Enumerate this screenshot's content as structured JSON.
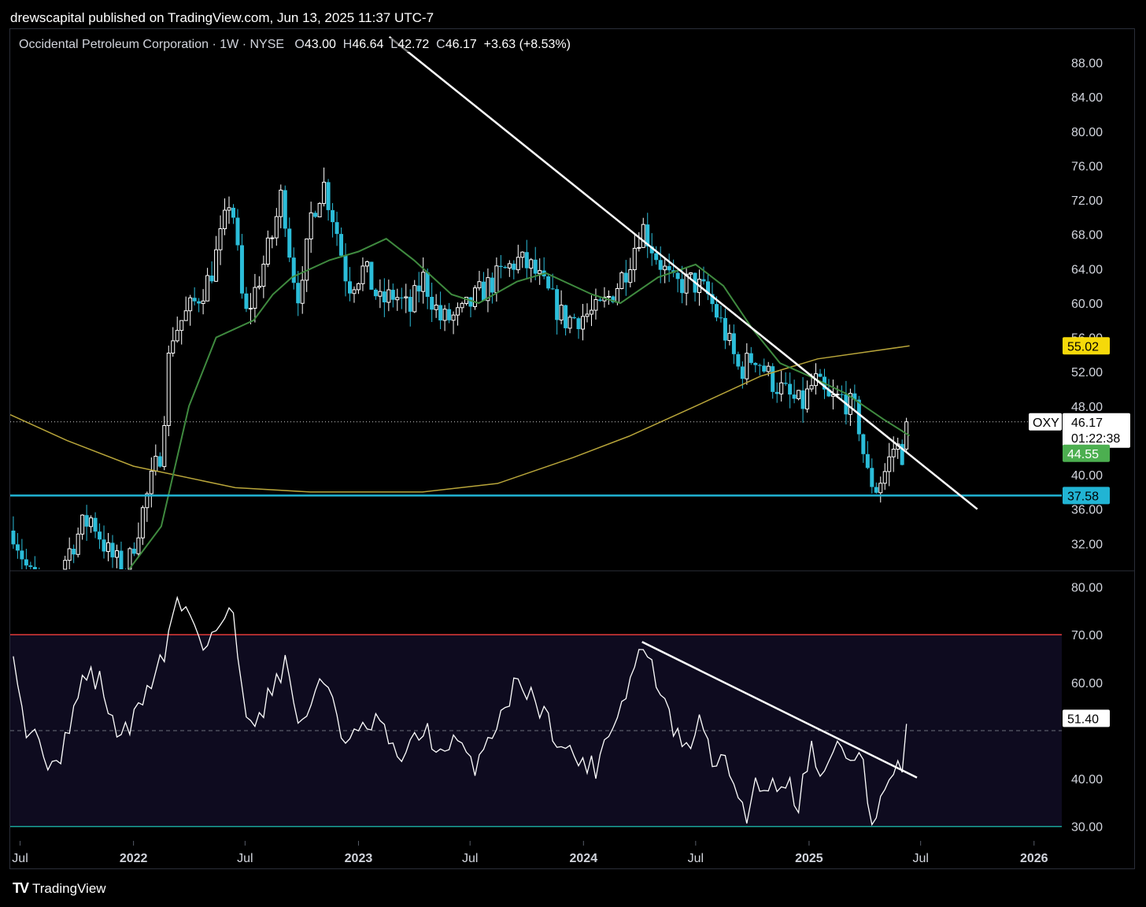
{
  "banner": "drewscapital published on TradingView.com, Jun 13, 2025 11:37 UTC-7",
  "legend": {
    "name": "Occidental Petroleum Corporation",
    "interval": "1W",
    "exchange": "NYSE",
    "open_label": "O",
    "open": "43.00",
    "high_label": "H",
    "high": "46.64",
    "low_label": "L",
    "low": "42.72",
    "close_label": "C",
    "close": "46.17",
    "change": "+3.63 (+8.53%)"
  },
  "footer": {
    "logo_mark": "TV",
    "logo_text": "TradingView"
  },
  "colors": {
    "up_candle": "#ffffff",
    "down_candle": "#2bbdd9",
    "sma_short": "#3f8a3f",
    "sma_long": "#b8a53a",
    "support": "#21b4d4",
    "rsi_line": "#ffffff",
    "rsi_upper_band": "#e23a3a",
    "rsi_lower_band": "#1aa39a"
  },
  "chart_data": [
    {
      "type": "candlestick",
      "symbol": "OXY",
      "price_axis": {
        "range": [
          29,
          92
        ],
        "ticks": [
          "88.00",
          "84.00",
          "80.00",
          "76.00",
          "72.00",
          "68.00",
          "64.00",
          "60.00",
          "56.00",
          "52.00",
          "48.00",
          "40.00",
          "36.00",
          "32.00"
        ]
      },
      "time_axis": {
        "ticks": [
          {
            "label": "Jul",
            "date": "2021-07-01"
          },
          {
            "label": "2022",
            "date": "2022-01-01"
          },
          {
            "label": "Jul",
            "date": "2022-07-01"
          },
          {
            "label": "2023",
            "date": "2023-01-01"
          },
          {
            "label": "Jul",
            "date": "2023-07-01"
          },
          {
            "label": "2024",
            "date": "2024-01-01"
          },
          {
            "label": "Jul",
            "date": "2024-07-01"
          },
          {
            "label": "2025",
            "date": "2025-01-01"
          },
          {
            "label": "Jul",
            "date": "2025-07-01"
          },
          {
            "label": "2026",
            "date": "2026-01-01"
          }
        ],
        "range": [
          "2021-06-15",
          "2026-02-15"
        ]
      },
      "price_badges": [
        {
          "symbol": "OXY",
          "value": "46.17",
          "countdown": "01:22:38",
          "kind": "last"
        },
        {
          "value": "55.02",
          "kind": "sma_long"
        },
        {
          "value": "44.55",
          "kind": "sma_short"
        },
        {
          "value": "37.58",
          "kind": "support"
        }
      ],
      "closes_monthly": [
        {
          "date": "2021-06-20",
          "close": 33.5
        },
        {
          "date": "2021-07-15",
          "close": 28.5
        },
        {
          "date": "2021-08-15",
          "close": 26.0
        },
        {
          "date": "2021-09-10",
          "close": 30.0
        },
        {
          "date": "2021-10-10",
          "close": 34.0
        },
        {
          "date": "2021-10-25",
          "close": 35.0
        },
        {
          "date": "2021-11-20",
          "close": 31.0
        },
        {
          "date": "2021-12-20",
          "close": 28.5
        },
        {
          "date": "2022-01-05",
          "close": 33.0
        },
        {
          "date": "2022-01-25",
          "close": 38.0
        },
        {
          "date": "2022-02-15",
          "close": 43.0
        },
        {
          "date": "2022-03-02",
          "close": 56.0
        },
        {
          "date": "2022-03-20",
          "close": 58.0
        },
        {
          "date": "2022-04-10",
          "close": 60.0
        },
        {
          "date": "2022-05-05",
          "close": 63.0
        },
        {
          "date": "2022-05-28",
          "close": 69.0
        },
        {
          "date": "2022-06-08",
          "close": 73.0
        },
        {
          "date": "2022-06-30",
          "close": 58.0
        },
        {
          "date": "2022-07-20",
          "close": 62.0
        },
        {
          "date": "2022-08-15",
          "close": 68.0
        },
        {
          "date": "2022-08-30",
          "close": 73.0
        },
        {
          "date": "2022-09-15",
          "close": 64.0
        },
        {
          "date": "2022-09-30",
          "close": 60.0
        },
        {
          "date": "2022-10-15",
          "close": 70.0
        },
        {
          "date": "2022-11-05",
          "close": 74.0
        },
        {
          "date": "2022-11-25",
          "close": 69.0
        },
        {
          "date": "2022-12-15",
          "close": 62.0
        },
        {
          "date": "2023-01-10",
          "close": 64.0
        },
        {
          "date": "2023-02-05",
          "close": 60.0
        },
        {
          "date": "2023-03-01",
          "close": 61.0
        },
        {
          "date": "2023-03-25",
          "close": 59.0
        },
        {
          "date": "2023-04-15",
          "close": 63.0
        },
        {
          "date": "2023-05-15",
          "close": 58.0
        },
        {
          "date": "2023-06-15",
          "close": 58.5
        },
        {
          "date": "2023-07-15",
          "close": 61.0
        },
        {
          "date": "2023-08-15",
          "close": 63.0
        },
        {
          "date": "2023-09-15",
          "close": 65.0
        },
        {
          "date": "2023-10-10",
          "close": 64.0
        },
        {
          "date": "2023-11-05",
          "close": 61.0
        },
        {
          "date": "2023-12-01",
          "close": 58.0
        },
        {
          "date": "2023-12-28",
          "close": 58.5
        },
        {
          "date": "2024-01-25",
          "close": 59.0
        },
        {
          "date": "2024-02-20",
          "close": 61.5
        },
        {
          "date": "2024-03-10",
          "close": 64.0
        },
        {
          "date": "2024-04-05",
          "close": 69.0
        },
        {
          "date": "2024-04-25",
          "close": 66.0
        },
        {
          "date": "2024-05-25",
          "close": 62.0
        },
        {
          "date": "2024-06-25",
          "close": 62.5
        },
        {
          "date": "2024-07-20",
          "close": 61.0
        },
        {
          "date": "2024-08-15",
          "close": 57.0
        },
        {
          "date": "2024-09-10",
          "close": 52.0
        },
        {
          "date": "2024-10-05",
          "close": 54.0
        },
        {
          "date": "2024-11-01",
          "close": 51.0
        },
        {
          "date": "2024-11-30",
          "close": 49.0
        },
        {
          "date": "2024-12-20",
          "close": 48.0
        },
        {
          "date": "2025-01-10",
          "close": 51.0
        },
        {
          "date": "2025-02-01",
          "close": 48.5
        },
        {
          "date": "2025-02-25",
          "close": 49.0
        },
        {
          "date": "2025-03-20",
          "close": 47.0
        },
        {
          "date": "2025-04-05",
          "close": 40.0
        },
        {
          "date": "2025-04-20",
          "close": 38.5
        },
        {
          "date": "2025-05-05",
          "close": 40.5
        },
        {
          "date": "2025-05-20",
          "close": 43.5
        },
        {
          "date": "2025-06-02",
          "close": 42.5
        },
        {
          "date": "2025-06-13",
          "close": 46.17
        }
      ],
      "sma_short_points": [
        {
          "date": "2021-12-25",
          "value": 29.0
        },
        {
          "date": "2022-02-15",
          "value": 34.0
        },
        {
          "date": "2022-04-01",
          "value": 48.0
        },
        {
          "date": "2022-05-15",
          "value": 56.0
        },
        {
          "date": "2022-07-15",
          "value": 58.0
        },
        {
          "date": "2022-08-15",
          "value": 61.0
        },
        {
          "date": "2022-09-15",
          "value": 63.0
        },
        {
          "date": "2022-11-15",
          "value": 65.0
        },
        {
          "date": "2023-01-01",
          "value": 66.0
        },
        {
          "date": "2023-02-15",
          "value": 67.5
        },
        {
          "date": "2023-04-01",
          "value": 65.0
        },
        {
          "date": "2023-06-01",
          "value": 61.0
        },
        {
          "date": "2023-07-15",
          "value": 60.0
        },
        {
          "date": "2023-09-15",
          "value": 62.5
        },
        {
          "date": "2023-11-01",
          "value": 63.5
        },
        {
          "date": "2024-01-15",
          "value": 61.0
        },
        {
          "date": "2024-03-01",
          "value": 60.0
        },
        {
          "date": "2024-05-01",
          "value": 63.0
        },
        {
          "date": "2024-07-01",
          "value": 64.5
        },
        {
          "date": "2024-08-15",
          "value": 62.0
        },
        {
          "date": "2024-10-01",
          "value": 57.0
        },
        {
          "date": "2024-11-15",
          "value": 53.0
        },
        {
          "date": "2025-01-01",
          "value": 51.5
        },
        {
          "date": "2025-03-01",
          "value": 49.5
        },
        {
          "date": "2025-05-01",
          "value": 46.5
        },
        {
          "date": "2025-06-13",
          "value": 44.55
        }
      ],
      "sma_long_points": [
        {
          "date": "2021-06-15",
          "value": 47.0
        },
        {
          "date": "2021-09-15",
          "value": 44.0
        },
        {
          "date": "2022-01-01",
          "value": 41.0
        },
        {
          "date": "2022-06-15",
          "value": 38.5
        },
        {
          "date": "2022-10-15",
          "value": 38.0
        },
        {
          "date": "2023-04-15",
          "value": 38.0
        },
        {
          "date": "2023-08-15",
          "value": 39.0
        },
        {
          "date": "2023-12-15",
          "value": 42.0
        },
        {
          "date": "2024-03-15",
          "value": 44.5
        },
        {
          "date": "2024-07-01",
          "value": 48.0
        },
        {
          "date": "2024-10-15",
          "value": 51.5
        },
        {
          "date": "2025-01-15",
          "value": 53.5
        },
        {
          "date": "2025-06-13",
          "value": 55.02
        }
      ],
      "trendline": [
        {
          "date": "2023-02-20",
          "value": 91.0
        },
        {
          "date": "2025-10-01",
          "value": 36.0
        }
      ],
      "support_level": 37.58,
      "last_price": 46.17
    },
    {
      "type": "line",
      "name": "RSI",
      "y_axis": {
        "range": [
          27,
          83
        ],
        "ticks": [
          "80.00",
          "70.00",
          "60.00",
          "40.00",
          "30.00"
        ]
      },
      "bands": {
        "upper": 70,
        "middle": 50,
        "lower": 30
      },
      "value_badge": "51.40",
      "points": [
        {
          "date": "2021-06-20",
          "value": 68
        },
        {
          "date": "2021-07-10",
          "value": 50
        },
        {
          "date": "2021-08-05",
          "value": 48
        },
        {
          "date": "2021-08-25",
          "value": 40
        },
        {
          "date": "2021-09-20",
          "value": 52
        },
        {
          "date": "2021-10-15",
          "value": 62
        },
        {
          "date": "2021-11-10",
          "value": 60
        },
        {
          "date": "2021-12-01",
          "value": 50
        },
        {
          "date": "2021-12-25",
          "value": 50
        },
        {
          "date": "2022-01-20",
          "value": 58
        },
        {
          "date": "2022-02-20",
          "value": 66
        },
        {
          "date": "2022-03-10",
          "value": 77
        },
        {
          "date": "2022-04-05",
          "value": 74
        },
        {
          "date": "2022-04-25",
          "value": 68
        },
        {
          "date": "2022-05-20",
          "value": 72
        },
        {
          "date": "2022-06-10",
          "value": 75
        },
        {
          "date": "2022-06-30",
          "value": 55
        },
        {
          "date": "2022-07-25",
          "value": 52
        },
        {
          "date": "2022-08-15",
          "value": 60
        },
        {
          "date": "2022-09-05",
          "value": 64
        },
        {
          "date": "2022-09-30",
          "value": 50
        },
        {
          "date": "2022-10-20",
          "value": 58
        },
        {
          "date": "2022-11-15",
          "value": 60
        },
        {
          "date": "2022-12-10",
          "value": 47
        },
        {
          "date": "2023-01-10",
          "value": 50
        },
        {
          "date": "2023-02-05",
          "value": 52
        },
        {
          "date": "2023-03-01",
          "value": 44
        },
        {
          "date": "2023-03-25",
          "value": 46
        },
        {
          "date": "2023-04-20",
          "value": 51
        },
        {
          "date": "2023-05-15",
          "value": 44
        },
        {
          "date": "2023-06-10",
          "value": 48
        },
        {
          "date": "2023-07-05",
          "value": 42
        },
        {
          "date": "2023-07-30",
          "value": 48
        },
        {
          "date": "2023-08-25",
          "value": 55
        },
        {
          "date": "2023-09-20",
          "value": 61
        },
        {
          "date": "2023-10-15",
          "value": 56
        },
        {
          "date": "2023-11-05",
          "value": 52
        },
        {
          "date": "2023-11-30",
          "value": 46
        },
        {
          "date": "2023-12-25",
          "value": 44
        },
        {
          "date": "2024-01-20",
          "value": 42
        },
        {
          "date": "2024-02-10",
          "value": 50
        },
        {
          "date": "2024-03-05",
          "value": 56
        },
        {
          "date": "2024-04-05",
          "value": 68
        },
        {
          "date": "2024-04-25",
          "value": 62
        },
        {
          "date": "2024-05-20",
          "value": 52
        },
        {
          "date": "2024-06-15",
          "value": 45
        },
        {
          "date": "2024-07-05",
          "value": 52
        },
        {
          "date": "2024-07-30",
          "value": 44
        },
        {
          "date": "2024-08-25",
          "value": 42
        },
        {
          "date": "2024-09-20",
          "value": 32
        },
        {
          "date": "2024-10-10",
          "value": 40
        },
        {
          "date": "2024-10-30",
          "value": 38
        },
        {
          "date": "2024-11-25",
          "value": 40
        },
        {
          "date": "2024-12-15",
          "value": 35
        },
        {
          "date": "2025-01-05",
          "value": 47
        },
        {
          "date": "2025-01-25",
          "value": 40
        },
        {
          "date": "2025-02-15",
          "value": 47
        },
        {
          "date": "2025-03-10",
          "value": 44
        },
        {
          "date": "2025-03-28",
          "value": 46
        },
        {
          "date": "2025-04-10",
          "value": 29
        },
        {
          "date": "2025-04-30",
          "value": 36
        },
        {
          "date": "2025-05-20",
          "value": 42
        },
        {
          "date": "2025-06-05",
          "value": 40
        },
        {
          "date": "2025-06-13",
          "value": 51.4
        }
      ],
      "trendline": [
        {
          "date": "2024-04-05",
          "value": 68.5
        },
        {
          "date": "2025-06-25",
          "value": 40.2
        }
      ]
    }
  ]
}
